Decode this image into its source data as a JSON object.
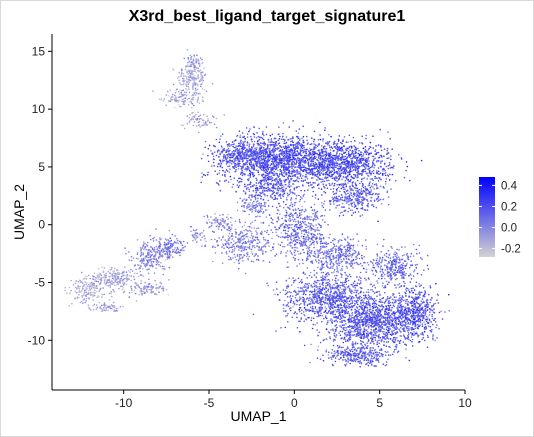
{
  "chart_data": {
    "type": "scatter",
    "title": "X3rd_best_ligand_target_signature1",
    "xlabel": "UMAP_1",
    "ylabel": "UMAP_2",
    "xlim": [
      -14.2,
      10
    ],
    "ylim": [
      -14.3,
      16.5
    ],
    "xticks": [
      -10,
      -5,
      0,
      5,
      10
    ],
    "yticks": [
      -10,
      -5,
      0,
      5,
      10,
      15
    ],
    "grid": false,
    "legend": {
      "position": "right",
      "ticks": [
        0.4,
        0.2,
        0.0,
        -0.2
      ],
      "tick_labels": [
        "0.4",
        "0.2",
        "0.0",
        "-0.2"
      ],
      "range": [
        -0.28,
        0.48
      ],
      "color_low": "#d3d3d3",
      "color_high": "#0000ff"
    },
    "clusters": [
      {
        "center": [
          -6,
          12.7
        ],
        "spread": [
          0.7,
          1.1
        ],
        "n": 180,
        "value": -0.12
      },
      {
        "center": [
          -6.5,
          11.0
        ],
        "spread": [
          1.0,
          0.6
        ],
        "n": 120,
        "value": -0.15
      },
      {
        "center": [
          -5.6,
          9.0
        ],
        "spread": [
          0.8,
          0.6
        ],
        "n": 70,
        "value": -0.1
      },
      {
        "center": [
          -5.9,
          14.2
        ],
        "spread": [
          0.4,
          0.5
        ],
        "n": 50,
        "value": -0.08
      },
      {
        "center": [
          -0.8,
          5.6
        ],
        "spread": [
          2.8,
          1.8
        ],
        "n": 1400,
        "value": 0.2
      },
      {
        "center": [
          3.0,
          5.2
        ],
        "spread": [
          2.2,
          1.6
        ],
        "n": 1000,
        "value": 0.18
      },
      {
        "center": [
          -3.0,
          6.0
        ],
        "spread": [
          1.4,
          1.2
        ],
        "n": 350,
        "value": 0.15
      },
      {
        "center": [
          3.5,
          2.3
        ],
        "spread": [
          1.5,
          1.0
        ],
        "n": 280,
        "value": 0.14
      },
      {
        "center": [
          -1.5,
          3.0
        ],
        "spread": [
          1.4,
          1.0
        ],
        "n": 250,
        "value": 0.15
      },
      {
        "center": [
          -3.0,
          -1.5
        ],
        "spread": [
          1.3,
          1.5
        ],
        "n": 320,
        "value": 0.02
      },
      {
        "center": [
          0.3,
          -0.5
        ],
        "spread": [
          1.3,
          2.0
        ],
        "n": 450,
        "value": 0.08
      },
      {
        "center": [
          2.5,
          -2.6
        ],
        "spread": [
          1.4,
          1.1
        ],
        "n": 350,
        "value": 0.07
      },
      {
        "center": [
          2.0,
          -6.2
        ],
        "spread": [
          2.2,
          1.6
        ],
        "n": 850,
        "value": 0.13
      },
      {
        "center": [
          4.6,
          -8.4
        ],
        "spread": [
          2.3,
          1.8
        ],
        "n": 1200,
        "value": 0.16
      },
      {
        "center": [
          7.0,
          -7.5
        ],
        "spread": [
          1.1,
          1.6
        ],
        "n": 450,
        "value": 0.18
      },
      {
        "center": [
          5.8,
          -3.7
        ],
        "spread": [
          1.2,
          1.2
        ],
        "n": 300,
        "value": 0.1
      },
      {
        "center": [
          3.8,
          -11.3
        ],
        "spread": [
          1.5,
          0.6
        ],
        "n": 280,
        "value": 0.15
      },
      {
        "center": [
          -8.5,
          -2.8
        ],
        "spread": [
          0.9,
          1.2
        ],
        "n": 220,
        "value": -0.02
      },
      {
        "center": [
          -7.3,
          -2.0
        ],
        "spread": [
          0.7,
          0.8
        ],
        "n": 120,
        "value": 0.05
      },
      {
        "center": [
          -10.5,
          -4.7
        ],
        "spread": [
          1.1,
          0.8
        ],
        "n": 220,
        "value": -0.12
      },
      {
        "center": [
          -12.2,
          -5.6
        ],
        "spread": [
          0.8,
          1.0
        ],
        "n": 170,
        "value": -0.15
      },
      {
        "center": [
          -11.0,
          -7.2
        ],
        "spread": [
          0.7,
          0.3
        ],
        "n": 60,
        "value": -0.12
      },
      {
        "center": [
          -8.7,
          -5.5
        ],
        "spread": [
          0.9,
          0.6
        ],
        "n": 100,
        "value": -0.08
      },
      {
        "center": [
          -2.3,
          1.6
        ],
        "spread": [
          0.8,
          0.5
        ],
        "n": 90,
        "value": 0.0
      },
      {
        "center": [
          -4.4,
          0.2
        ],
        "spread": [
          0.7,
          0.5
        ],
        "n": 70,
        "value": -0.05
      },
      {
        "center": [
          -5.7,
          -1.0
        ],
        "spread": [
          0.4,
          0.6
        ],
        "n": 40,
        "value": -0.05
      }
    ]
  }
}
